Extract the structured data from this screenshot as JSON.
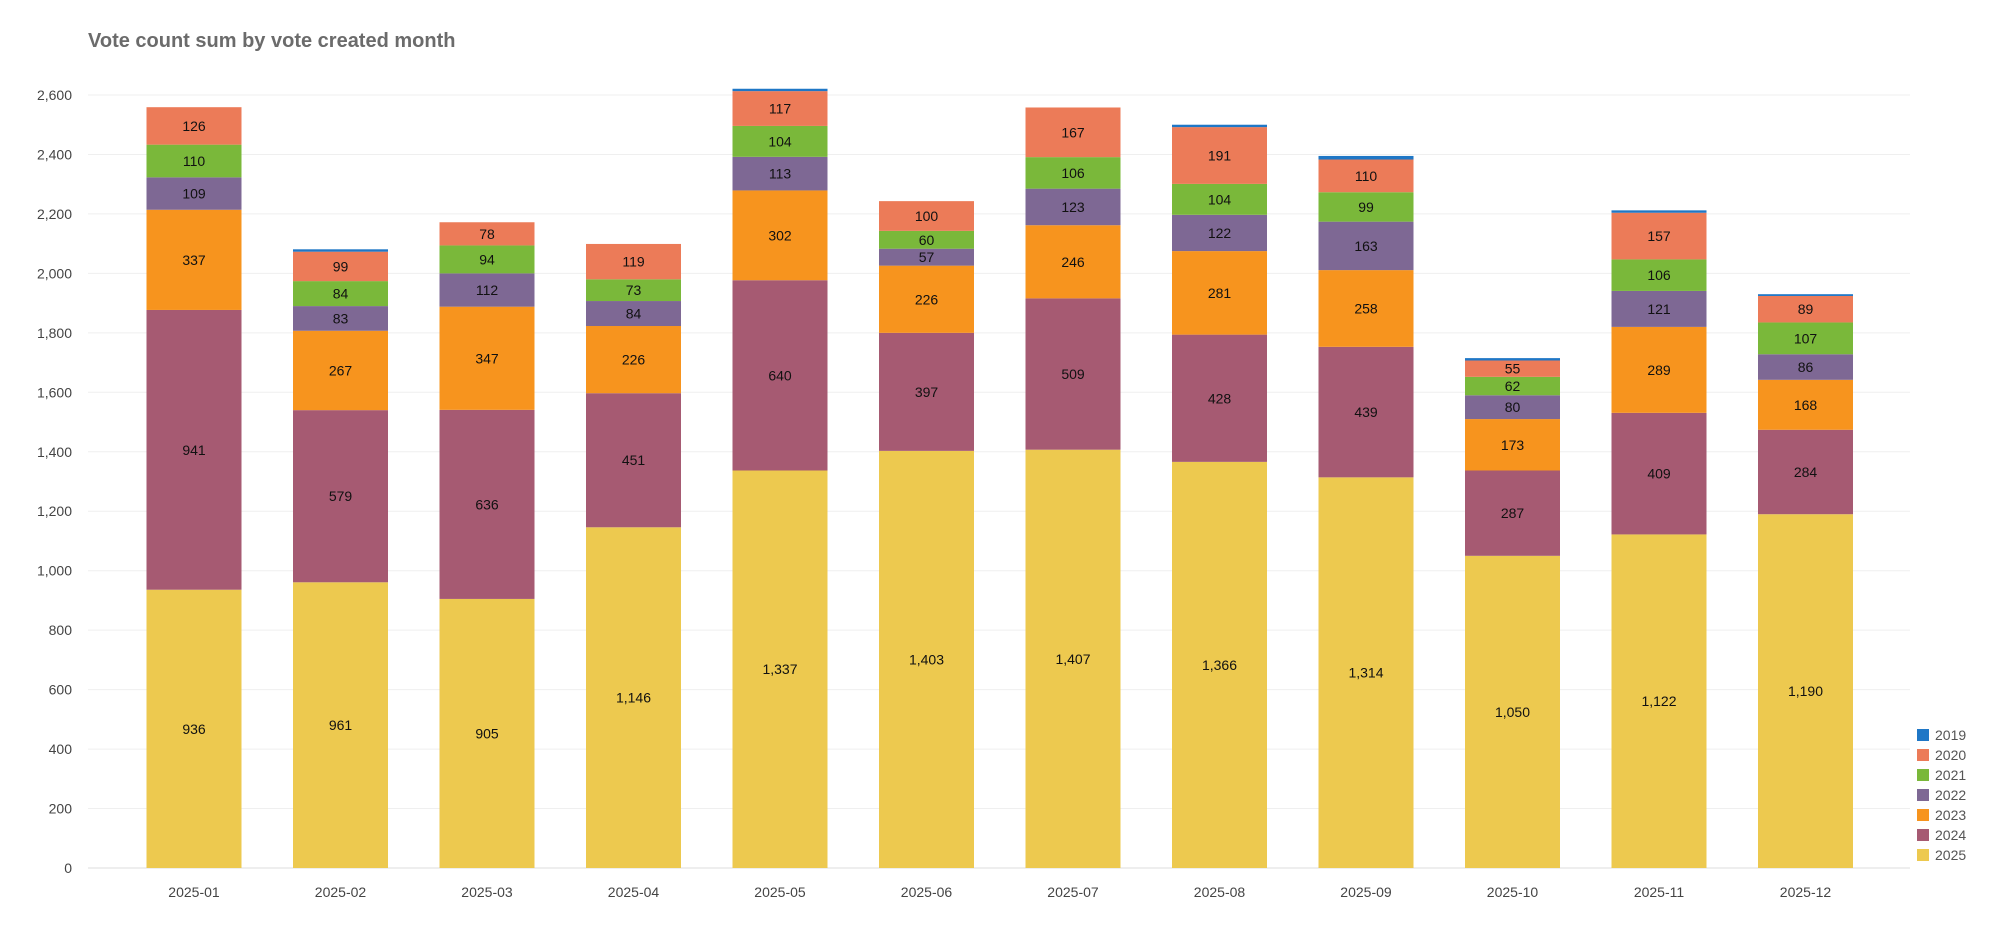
{
  "chart_data": {
    "type": "bar",
    "stacked": true,
    "title": "Vote count sum by vote created month",
    "xlabel": "",
    "ylabel": "",
    "ylim": [
      0,
      2600
    ],
    "yticks": [
      "0",
      "200",
      "400",
      "600",
      "800",
      "1,000",
      "1,200",
      "1,400",
      "1,600",
      "1,800",
      "2,000",
      "2,200",
      "2,400",
      "2,600"
    ],
    "grid": true,
    "legend_position": "bottom-right",
    "categories": [
      "2025-01",
      "2025-02",
      "2025-03",
      "2025-04",
      "2025-05",
      "2025-06",
      "2025-07",
      "2025-08",
      "2025-09",
      "2025-10",
      "2025-11",
      "2025-12"
    ],
    "series": [
      {
        "name": "2025",
        "color": "#EDC94F",
        "values": [
          936,
          961,
          905,
          1146,
          1337,
          1403,
          1407,
          1366,
          1314,
          1050,
          1122,
          1190
        ]
      },
      {
        "name": "2024",
        "color": "#A65A72",
        "values": [
          941,
          579,
          636,
          451,
          640,
          397,
          509,
          428,
          439,
          287,
          409,
          284
        ]
      },
      {
        "name": "2023",
        "color": "#F7941E",
        "values": [
          337,
          267,
          347,
          226,
          302,
          226,
          246,
          281,
          258,
          173,
          289,
          168
        ]
      },
      {
        "name": "2022",
        "color": "#7E6894",
        "values": [
          109,
          83,
          112,
          84,
          113,
          57,
          123,
          122,
          163,
          80,
          121,
          86
        ]
      },
      {
        "name": "2021",
        "color": "#7AB83A",
        "values": [
          110,
          84,
          94,
          73,
          104,
          60,
          106,
          104,
          99,
          62,
          106,
          107
        ]
      },
      {
        "name": "2020",
        "color": "#EC7B58",
        "values": [
          126,
          99,
          78,
          119,
          117,
          100,
          167,
          191,
          110,
          55,
          157,
          89
        ]
      },
      {
        "name": "2019",
        "color": "#1F77C6",
        "values": [
          0,
          8,
          0,
          0,
          8,
          0,
          0,
          8,
          12,
          8,
          8,
          6
        ]
      }
    ],
    "legend_order": [
      "2019",
      "2020",
      "2021",
      "2022",
      "2023",
      "2024",
      "2025"
    ]
  }
}
